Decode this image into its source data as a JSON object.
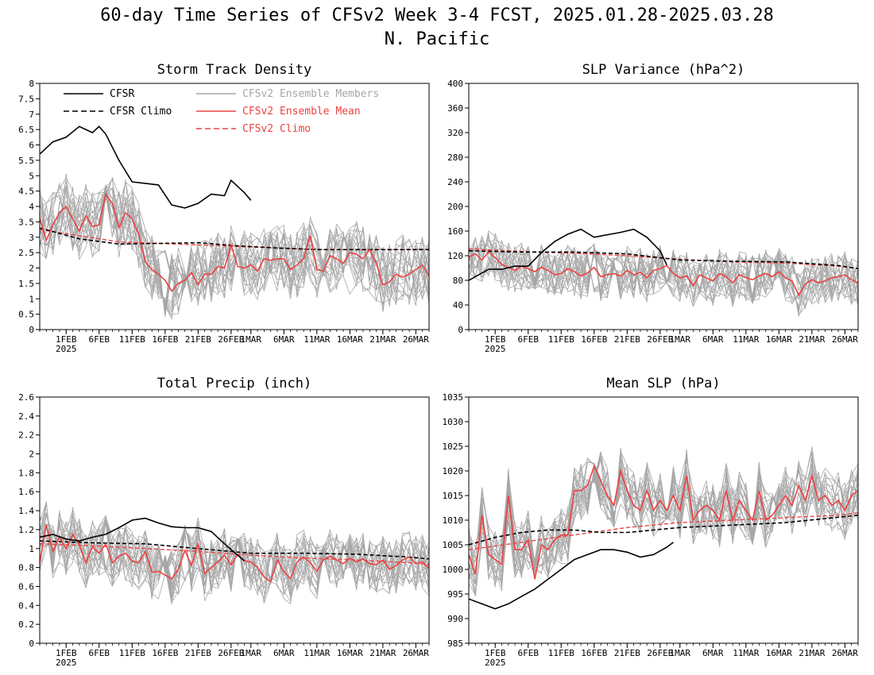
{
  "figure": {
    "title_line1": "60-day Time Series of CFSv2 Week 3-4 FCST, 2025.01.28-2025.03.28",
    "title_line2": "N. Pacific"
  },
  "legend": [
    {
      "name": "CFSR",
      "color": "#000000",
      "dash": false
    },
    {
      "name": "CFSR Climo",
      "color": "#000000",
      "dash": true
    },
    {
      "name": "CFSv2 Ensemble Members",
      "color": "#a6a6a6",
      "dash": false
    },
    {
      "name": "CFSv2 Ensemble Mean",
      "color": "#ef4040",
      "dash": false
    },
    {
      "name": "CFSv2 Climo",
      "color": "#ef4040",
      "dash": true
    }
  ],
  "x_ticks": [
    "1FEB",
    "6FEB",
    "11FEB",
    "16FEB",
    "21FEB",
    "26FEB",
    "1MAR",
    "6MAR",
    "11MAR",
    "16MAR",
    "21MAR",
    "26MAR"
  ],
  "x_tick_dates": [
    "2025-02-01",
    "2025-02-06",
    "2025-02-11",
    "2025-02-16",
    "2025-02-21",
    "2025-02-26",
    "2025-03-01",
    "2025-03-06",
    "2025-03-11",
    "2025-03-16",
    "2025-03-21",
    "2025-03-26"
  ],
  "x_year_label": "2025",
  "chart_data": [
    {
      "type": "line",
      "title": "Storm Track Density",
      "xlim": [
        "2025-01-28",
        "2025-03-28"
      ],
      "ylim": [
        0,
        8
      ],
      "yticks": [
        0,
        0.5,
        1,
        1.5,
        2,
        2.5,
        3,
        3.5,
        4,
        4.5,
        5,
        5.5,
        6,
        6.5,
        7,
        7.5,
        8
      ],
      "show_legend": true,
      "member_base": [
        3.6,
        3.1,
        3.5,
        3.8,
        4.0,
        3.6,
        3.3,
        3.7,
        3.4,
        3.5,
        4.4,
        4.1,
        3.4,
        3.8,
        3.6,
        3.0,
        2.2,
        2.0,
        1.8,
        1.5,
        1.4,
        1.6,
        1.7,
        1.9,
        1.8,
        1.9,
        1.9,
        2.1,
        2.0,
        2.3,
        2.4,
        2.2,
        2.1,
        2.0,
        2.2,
        2.1,
        2.3,
        2.3,
        2.0,
        2.1,
        2.4,
        2.6,
        2.1,
        2.0,
        2.3,
        2.4,
        2.3,
        2.2,
        2.5,
        2.3,
        2.1,
        2.0,
        1.6,
        1.7,
        1.8,
        2.0,
        1.9,
        1.8,
        2.0,
        1.9
      ],
      "member_spread": 1.1,
      "series": [
        {
          "name": "CFSR",
          "dates": [
            "2025-01-28",
            "2025-01-30",
            "2025-02-01",
            "2025-02-03",
            "2025-02-05",
            "2025-02-06",
            "2025-02-07",
            "2025-02-09",
            "2025-02-11",
            "2025-02-13",
            "2025-02-15",
            "2025-02-17",
            "2025-02-19",
            "2025-02-21",
            "2025-02-23",
            "2025-02-25",
            "2025-02-26",
            "2025-02-28",
            "2025-03-01"
          ],
          "values": [
            5.7,
            6.1,
            6.25,
            6.6,
            6.4,
            6.6,
            6.35,
            5.5,
            4.8,
            4.75,
            4.7,
            4.05,
            3.95,
            4.1,
            4.4,
            4.35,
            4.85,
            4.45,
            4.2
          ]
        },
        {
          "name": "CFSR Climo",
          "dates": [
            "2025-01-28",
            "2025-02-03",
            "2025-02-09",
            "2025-02-15",
            "2025-02-21",
            "2025-02-27",
            "2025-03-05",
            "2025-03-11",
            "2025-03-17",
            "2025-03-23",
            "2025-03-28"
          ],
          "values": [
            3.3,
            2.95,
            2.78,
            2.8,
            2.82,
            2.72,
            2.65,
            2.6,
            2.6,
            2.6,
            2.6
          ]
        },
        {
          "name": "CFSv2 Ensemble Mean",
          "values": [
            3.6,
            2.9,
            3.4,
            3.8,
            4.0,
            3.6,
            3.2,
            3.7,
            3.35,
            3.4,
            4.4,
            4.1,
            3.3,
            3.8,
            3.6,
            3.1,
            2.2,
            1.95,
            1.8,
            1.6,
            1.25,
            1.5,
            1.6,
            1.85,
            1.45,
            1.8,
            1.8,
            2.05,
            2.0,
            2.75,
            2.05,
            2.0,
            2.1,
            1.9,
            2.3,
            2.25,
            2.3,
            2.3,
            1.95,
            2.1,
            2.3,
            3.05,
            1.95,
            1.9,
            2.4,
            2.3,
            2.15,
            2.5,
            2.45,
            2.3,
            2.6,
            2.15,
            1.45,
            1.55,
            1.8,
            1.7,
            1.8,
            1.95,
            2.1,
            1.75
          ]
        },
        {
          "name": "CFSv2 Climo",
          "dates": [
            "2025-01-28",
            "2025-02-03",
            "2025-02-09",
            "2025-02-15",
            "2025-02-21",
            "2025-02-27",
            "2025-03-05",
            "2025-03-11",
            "2025-03-17",
            "2025-03-23",
            "2025-03-28"
          ],
          "values": [
            3.25,
            3.05,
            2.85,
            2.8,
            2.75,
            2.7,
            2.65,
            2.6,
            2.6,
            2.6,
            2.6
          ]
        }
      ]
    },
    {
      "type": "line",
      "title": "SLP Variance (hPa^2)",
      "xlim": [
        "2025-01-28",
        "2025-03-28"
      ],
      "ylim": [
        0,
        400
      ],
      "yticks": [
        0,
        40,
        80,
        120,
        160,
        200,
        240,
        280,
        320,
        360,
        400
      ],
      "show_legend": false,
      "member_base": [
        118,
        121,
        114,
        124,
        117,
        106,
        101,
        96,
        103,
        99,
        94,
        101,
        96,
        89,
        91,
        99,
        94,
        87,
        92,
        101,
        86,
        89,
        91,
        87,
        96,
        89,
        93,
        84,
        96,
        99,
        104,
        91,
        84,
        87,
        71,
        89,
        84,
        79,
        91,
        86,
        76,
        89,
        84,
        81,
        87,
        91,
        86,
        94,
        84,
        79,
        56,
        74,
        81,
        76,
        79,
        84,
        86,
        89,
        81,
        76
      ],
      "member_spread": 40,
      "series": [
        {
          "name": "CFSR",
          "dates": [
            "2025-01-28",
            "2025-01-31",
            "2025-02-02",
            "2025-02-04",
            "2025-02-06",
            "2025-02-08",
            "2025-02-10",
            "2025-02-12",
            "2025-02-14",
            "2025-02-16",
            "2025-02-18",
            "2025-02-20",
            "2025-02-22",
            "2025-02-24",
            "2025-02-26",
            "2025-02-27"
          ],
          "values": [
            80,
            98,
            98,
            103,
            103,
            125,
            143,
            155,
            163,
            150,
            154,
            158,
            163,
            150,
            128,
            105
          ]
        },
        {
          "name": "CFSR Climo",
          "dates": [
            "2025-01-28",
            "2025-02-05",
            "2025-02-13",
            "2025-02-21",
            "2025-03-01",
            "2025-03-09",
            "2025-03-17",
            "2025-03-25",
            "2025-03-28"
          ],
          "values": [
            128,
            126,
            126,
            123,
            113,
            111,
            110,
            104,
            99
          ]
        },
        {
          "name": "CFSv2 Ensemble Mean",
          "values": [
            118,
            123,
            113,
            126,
            117,
            106,
            101,
            96,
            103,
            99,
            94,
            101,
            96,
            89,
            91,
            99,
            94,
            87,
            92,
            101,
            86,
            89,
            91,
            87,
            96,
            89,
            93,
            84,
            96,
            99,
            104,
            91,
            84,
            87,
            71,
            89,
            84,
            79,
            91,
            86,
            76,
            89,
            84,
            81,
            87,
            91,
            86,
            94,
            84,
            79,
            56,
            74,
            81,
            76,
            79,
            84,
            86,
            89,
            81,
            76
          ]
        },
        {
          "name": "CFSv2 Climo",
          "dates": [
            "2025-01-28",
            "2025-02-05",
            "2025-02-13",
            "2025-02-21",
            "2025-03-01",
            "2025-03-09",
            "2025-03-17",
            "2025-03-25",
            "2025-03-28"
          ],
          "values": [
            131,
            127,
            124,
            120,
            114,
            110,
            108,
            103,
            99
          ]
        }
      ]
    },
    {
      "type": "line",
      "title": "Total Precip (inch)",
      "xlim": [
        "2025-01-28",
        "2025-03-28"
      ],
      "ylim": [
        0,
        2.6
      ],
      "yticks": [
        0,
        0.2,
        0.4,
        0.6,
        0.8,
        1,
        1.2,
        1.4,
        1.6,
        1.8,
        2,
        2.2,
        2.4,
        2.6
      ],
      "show_legend": false,
      "member_base": [
        1.05,
        1.22,
        0.98,
        1.12,
        1.0,
        1.15,
        1.03,
        0.88,
        1.0,
        0.95,
        1.05,
        0.87,
        0.92,
        0.95,
        0.88,
        0.85,
        0.97,
        0.76,
        0.76,
        0.72,
        0.7,
        0.79,
        0.95,
        0.82,
        1.03,
        0.74,
        0.81,
        0.86,
        0.92,
        0.84,
        0.93,
        0.88,
        0.86,
        0.8,
        0.72,
        0.7,
        0.87,
        0.77,
        0.69,
        0.85,
        0.9,
        0.86,
        0.76,
        0.88,
        0.92,
        0.88,
        0.84,
        0.9,
        0.85,
        0.88,
        0.84,
        0.82,
        0.87,
        0.78,
        0.82,
        0.88,
        0.9,
        0.84,
        0.86,
        0.79
      ],
      "member_spread": 0.3,
      "series": [
        {
          "name": "CFSR",
          "dates": [
            "2025-01-28",
            "2025-01-30",
            "2025-02-01",
            "2025-02-03",
            "2025-02-05",
            "2025-02-07",
            "2025-02-09",
            "2025-02-11",
            "2025-02-13",
            "2025-02-15",
            "2025-02-17",
            "2025-02-19",
            "2025-02-21",
            "2025-02-23",
            "2025-02-25",
            "2025-02-26",
            "2025-02-28"
          ],
          "values": [
            1.12,
            1.15,
            1.1,
            1.08,
            1.12,
            1.15,
            1.22,
            1.3,
            1.32,
            1.27,
            1.23,
            1.22,
            1.22,
            1.18,
            1.05,
            0.99,
            0.87
          ]
        },
        {
          "name": "CFSR Climo",
          "dates": [
            "2025-01-28",
            "2025-02-05",
            "2025-02-13",
            "2025-02-21",
            "2025-03-01",
            "2025-03-09",
            "2025-03-17",
            "2025-03-25",
            "2025-03-28"
          ],
          "values": [
            1.08,
            1.06,
            1.05,
            1.0,
            0.95,
            0.95,
            0.94,
            0.91,
            0.89
          ]
        },
        {
          "name": "CFSv2 Ensemble Mean",
          "values": [
            0.85,
            1.25,
            0.97,
            1.12,
            1.0,
            1.15,
            1.04,
            0.85,
            1.02,
            0.95,
            1.05,
            0.85,
            0.92,
            0.95,
            0.87,
            0.85,
            0.97,
            0.75,
            0.76,
            0.72,
            0.68,
            0.78,
            0.98,
            0.82,
            1.05,
            0.74,
            0.8,
            0.86,
            0.93,
            0.83,
            0.94,
            0.87,
            0.86,
            0.8,
            0.7,
            0.65,
            0.88,
            0.76,
            0.68,
            0.86,
            0.91,
            0.85,
            0.76,
            0.88,
            0.92,
            0.88,
            0.84,
            0.9,
            0.86,
            0.89,
            0.84,
            0.83,
            0.88,
            0.78,
            0.82,
            0.88,
            0.91,
            0.84,
            0.86,
            0.79
          ]
        },
        {
          "name": "CFSv2 Climo",
          "dates": [
            "2025-01-28",
            "2025-02-05",
            "2025-02-13",
            "2025-02-21",
            "2025-03-01",
            "2025-03-09",
            "2025-03-17",
            "2025-03-25",
            "2025-03-28"
          ],
          "values": [
            1.05,
            1.03,
            1.0,
            0.97,
            0.93,
            0.9,
            0.88,
            0.85,
            0.83
          ]
        }
      ]
    },
    {
      "type": "line",
      "title": "Mean SLP (hPa)",
      "xlim": [
        "2025-01-28",
        "2025-03-28"
      ],
      "ylim": [
        985,
        1035
      ],
      "yticks": [
        985,
        990,
        995,
        1000,
        1005,
        1010,
        1015,
        1020,
        1025,
        1030,
        1035
      ],
      "show_legend": false,
      "member_base": [
        1003,
        1000,
        1011,
        1003,
        1002,
        1001,
        1015,
        1004,
        1004,
        1006,
        998,
        1005,
        1004,
        1006,
        1007,
        1007,
        1016,
        1016,
        1017,
        1020,
        1018,
        1015,
        1014,
        1019,
        1016,
        1014,
        1013,
        1016,
        1012,
        1014,
        1012,
        1015,
        1012,
        1019,
        1011,
        1012,
        1013,
        1012,
        1010,
        1016,
        1011,
        1014,
        1012,
        1010,
        1016,
        1010,
        1011,
        1013,
        1015,
        1013,
        1017,
        1014,
        1019,
        1014,
        1015,
        1013,
        1014,
        1012,
        1015,
        1016
      ],
      "member_spread": 6,
      "series": [
        {
          "name": "CFSR",
          "dates": [
            "2025-01-28",
            "2025-01-30",
            "2025-02-01",
            "2025-02-03",
            "2025-02-05",
            "2025-02-07",
            "2025-02-09",
            "2025-02-11",
            "2025-02-13",
            "2025-02-15",
            "2025-02-17",
            "2025-02-19",
            "2025-02-21",
            "2025-02-23",
            "2025-02-25",
            "2025-02-27",
            "2025-02-28"
          ],
          "values": [
            994,
            993,
            992,
            993,
            994.5,
            996,
            998,
            1000,
            1002,
            1003,
            1004,
            1004,
            1003.5,
            1002.5,
            1003,
            1004.5,
            1005.5
          ]
        },
        {
          "name": "CFSR Climo",
          "dates": [
            "2025-01-28",
            "2025-02-01",
            "2025-02-05",
            "2025-02-09",
            "2025-02-13",
            "2025-02-17",
            "2025-02-21",
            "2025-03-01",
            "2025-03-09",
            "2025-03-17",
            "2025-03-28"
          ],
          "values": [
            1005,
            1006.5,
            1007.5,
            1008,
            1008,
            1007.5,
            1007.5,
            1008.5,
            1009,
            1009.5,
            1011
          ]
        },
        {
          "name": "CFSv2 Ensemble Mean",
          "values": [
            1003,
            999,
            1011,
            1003,
            1002,
            1001,
            1015,
            1004,
            1004,
            1006,
            998,
            1005,
            1004,
            1006,
            1007,
            1007,
            1016,
            1016,
            1017,
            1021,
            1018,
            1015,
            1013,
            1020,
            1016,
            1013,
            1012,
            1016,
            1012,
            1014,
            1012,
            1015,
            1012,
            1019,
            1010,
            1012,
            1013,
            1012,
            1010,
            1016,
            1010,
            1014,
            1012,
            1010,
            1016,
            1010,
            1011,
            1013,
            1015,
            1013,
            1017,
            1014,
            1019,
            1014,
            1015,
            1013,
            1014,
            1012,
            1015,
            1016
          ]
        },
        {
          "name": "CFSv2 Climo",
          "dates": [
            "2025-01-28",
            "2025-02-05",
            "2025-02-13",
            "2025-02-21",
            "2025-03-01",
            "2025-03-09",
            "2025-03-17",
            "2025-03-25",
            "2025-03-28"
          ],
          "values": [
            1004,
            1005.5,
            1007,
            1008.5,
            1009.5,
            1010,
            1010.5,
            1011,
            1011.5
          ]
        }
      ]
    }
  ]
}
